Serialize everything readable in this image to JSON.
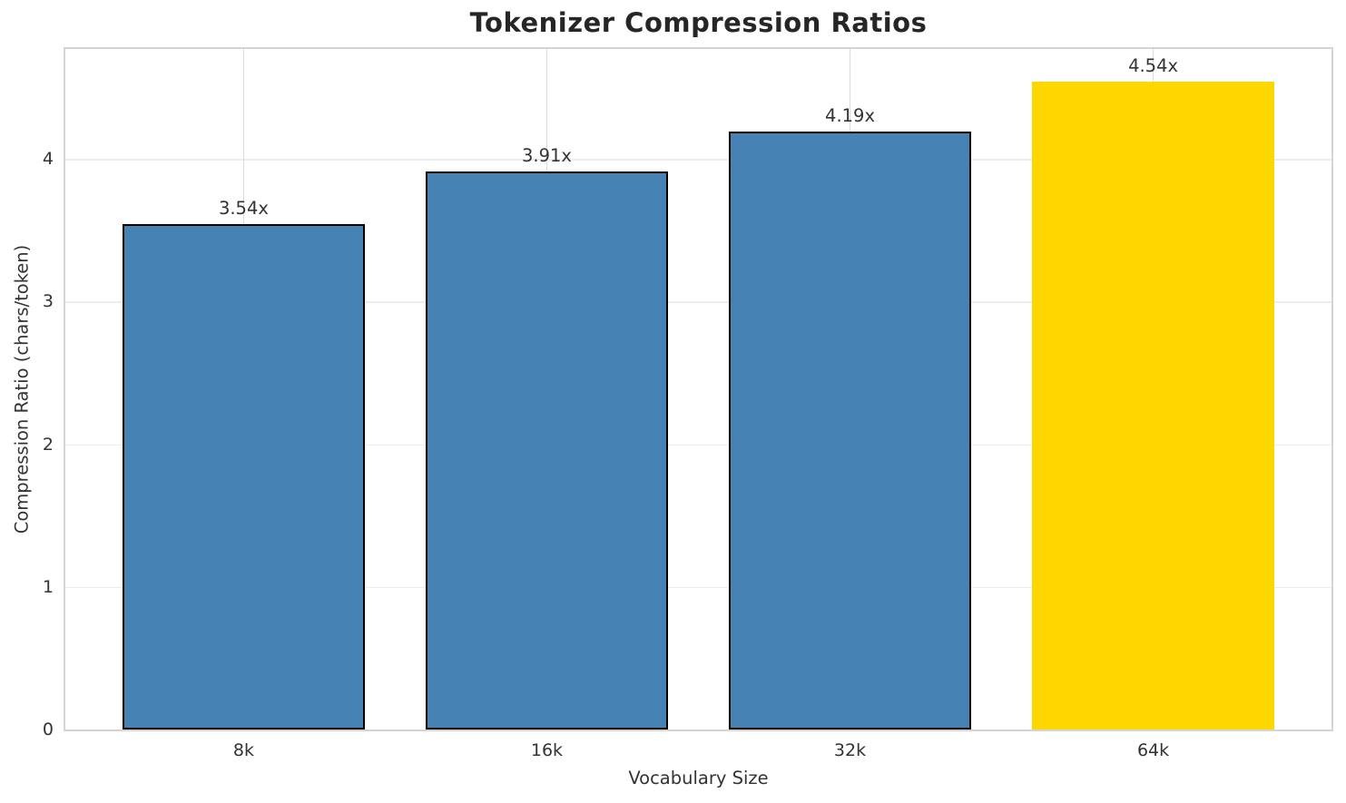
{
  "chart_data": {
    "type": "bar",
    "title": "Tokenizer Compression Ratios",
    "xlabel": "Vocabulary Size",
    "ylabel": "Compression Ratio (chars/token)",
    "categories": [
      "8k",
      "16k",
      "32k",
      "64k"
    ],
    "values": [
      3.54,
      3.91,
      4.19,
      4.54
    ],
    "bar_labels": [
      "3.54x",
      "3.91x",
      "4.19x",
      "4.54x"
    ],
    "yticks": [
      "0",
      "1",
      "2",
      "3",
      "4"
    ],
    "ylim": [
      0,
      4.77
    ],
    "grid": true,
    "legend_position": "none",
    "bar_colors": [
      "#4682B4",
      "#4682B4",
      "#4682B4",
      "#FFD700"
    ],
    "bar_edge_color": "#000000",
    "bar_edge_widths": [
      2.5,
      2.5,
      2.5,
      0
    ],
    "highlight_index": 3,
    "accent_colors": {
      "steelblue": "#4682B4",
      "gold": "#FFD700"
    }
  }
}
